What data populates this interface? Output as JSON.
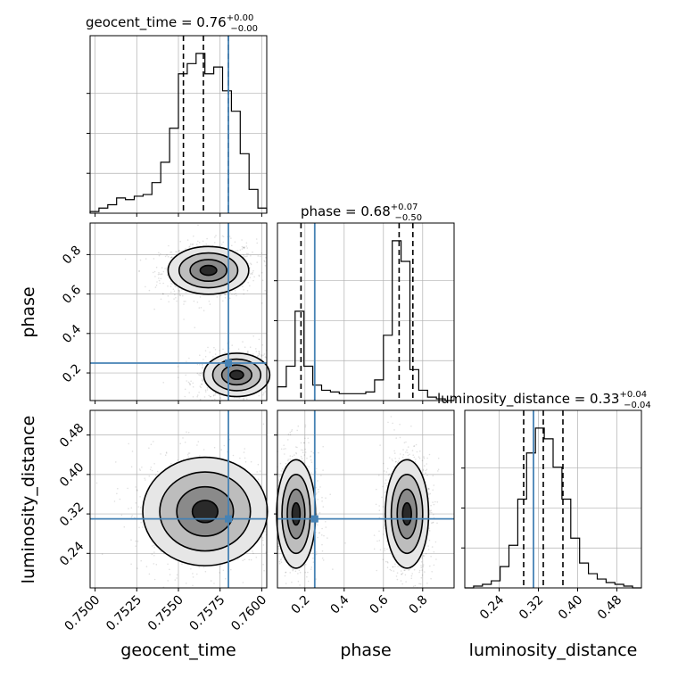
{
  "chart_data": {
    "type": "corner",
    "parameters": [
      "geocent_time",
      "phase",
      "luminosity_distance"
    ],
    "truths": {
      "geocent_time": 0.758,
      "phase": 0.25,
      "luminosity_distance": 0.31
    },
    "truth_color": "#4682b4",
    "titles": [
      {
        "param": "geocent_time",
        "label": "geocent_time = 0.76",
        "sup": "+0.00",
        "sub": "−0.00"
      },
      {
        "param": "phase",
        "label": "phase = 0.68",
        "sup": "+0.07",
        "sub": "−0.50"
      },
      {
        "param": "luminosity_distance",
        "label": "luminosity_distance = 0.33",
        "sup": "+0.04",
        "sub": "−0.04"
      }
    ],
    "axes": {
      "geocent_time": {
        "label": "geocent_time",
        "range": [
          0.7497,
          0.7603
        ],
        "ticks": [
          0.75,
          0.7525,
          0.755,
          0.7575,
          0.76
        ],
        "tick_labels": [
          "0.7500",
          "0.7525",
          "0.7550",
          "0.7575",
          "0.7600"
        ]
      },
      "phase": {
        "label": "phase",
        "range": [
          0.06,
          0.96
        ],
        "ticks": [
          0.2,
          0.4,
          0.6,
          0.8
        ],
        "tick_labels": [
          "0.2",
          "0.4",
          "0.6",
          "0.8"
        ]
      },
      "luminosity_distance": {
        "label": "luminosity_distance",
        "range": [
          0.17,
          0.53
        ],
        "ticks": [
          0.24,
          0.32,
          0.4,
          0.48
        ],
        "tick_labels": [
          "0.24",
          "0.32",
          "0.40",
          "0.48"
        ]
      }
    },
    "histograms": [
      {
        "param": "geocent_time",
        "bin_edges": [
          0.7497,
          0.75023,
          0.75076,
          0.75129,
          0.75182,
          0.75235,
          0.75288,
          0.75341,
          0.75394,
          0.75447,
          0.755,
          0.75553,
          0.75606,
          0.75659,
          0.75712,
          0.75765,
          0.75818,
          0.75871,
          0.75924,
          0.75977,
          0.7603
        ],
        "counts": [
          1,
          3,
          5,
          9,
          8,
          10,
          11,
          18,
          30,
          50,
          82,
          88,
          94,
          82,
          86,
          72,
          60,
          35,
          14,
          3
        ],
        "quantiles": [
          0.7553,
          0.7565,
          0.758
        ]
      },
      {
        "param": "phase",
        "bin_edges": [
          0.06,
          0.105,
          0.15,
          0.195,
          0.24,
          0.285,
          0.33,
          0.375,
          0.42,
          0.465,
          0.51,
          0.555,
          0.6,
          0.645,
          0.69,
          0.735,
          0.78,
          0.825,
          0.87,
          0.915,
          0.96
        ],
        "counts": [
          8,
          20,
          52,
          20,
          9,
          6,
          5,
          4,
          4,
          4,
          5,
          12,
          38,
          93,
          81,
          18,
          6,
          2,
          1,
          0
        ],
        "quantiles": [
          0.18,
          0.68,
          0.75
        ]
      },
      {
        "param": "luminosity_distance",
        "bin_edges": [
          0.17,
          0.188,
          0.206,
          0.224,
          0.242,
          0.26,
          0.278,
          0.296,
          0.314,
          0.332,
          0.35,
          0.368,
          0.386,
          0.404,
          0.422,
          0.44,
          0.458,
          0.476,
          0.494,
          0.512,
          0.53
        ],
        "counts": [
          0,
          1,
          2,
          4,
          12,
          24,
          50,
          76,
          90,
          84,
          68,
          50,
          28,
          14,
          8,
          5,
          3,
          2,
          1,
          0
        ],
        "quantiles": [
          0.29,
          0.33,
          0.37
        ]
      }
    ],
    "pairs": [
      {
        "x": "geocent_time",
        "y": "phase",
        "modes": [
          {
            "cx": 0.7568,
            "cy": 0.72,
            "sx": 0.0011,
            "sy": 0.055,
            "rho": 0.1
          },
          {
            "cx": 0.7585,
            "cy": 0.19,
            "sx": 0.0009,
            "sy": 0.05,
            "rho": 0.2
          }
        ]
      },
      {
        "x": "geocent_time",
        "y": "luminosity_distance",
        "modes": [
          {
            "cx": 0.7566,
            "cy": 0.325,
            "sx": 0.0017,
            "sy": 0.05,
            "rho": 0.0
          }
        ]
      },
      {
        "x": "phase",
        "y": "luminosity_distance",
        "modes": [
          {
            "cx": 0.155,
            "cy": 0.32,
            "sx": 0.045,
            "sy": 0.05,
            "rho": 0.0
          },
          {
            "cx": 0.72,
            "cy": 0.32,
            "sx": 0.05,
            "sy": 0.05,
            "rho": 0.0
          }
        ]
      }
    ],
    "grid": true
  }
}
